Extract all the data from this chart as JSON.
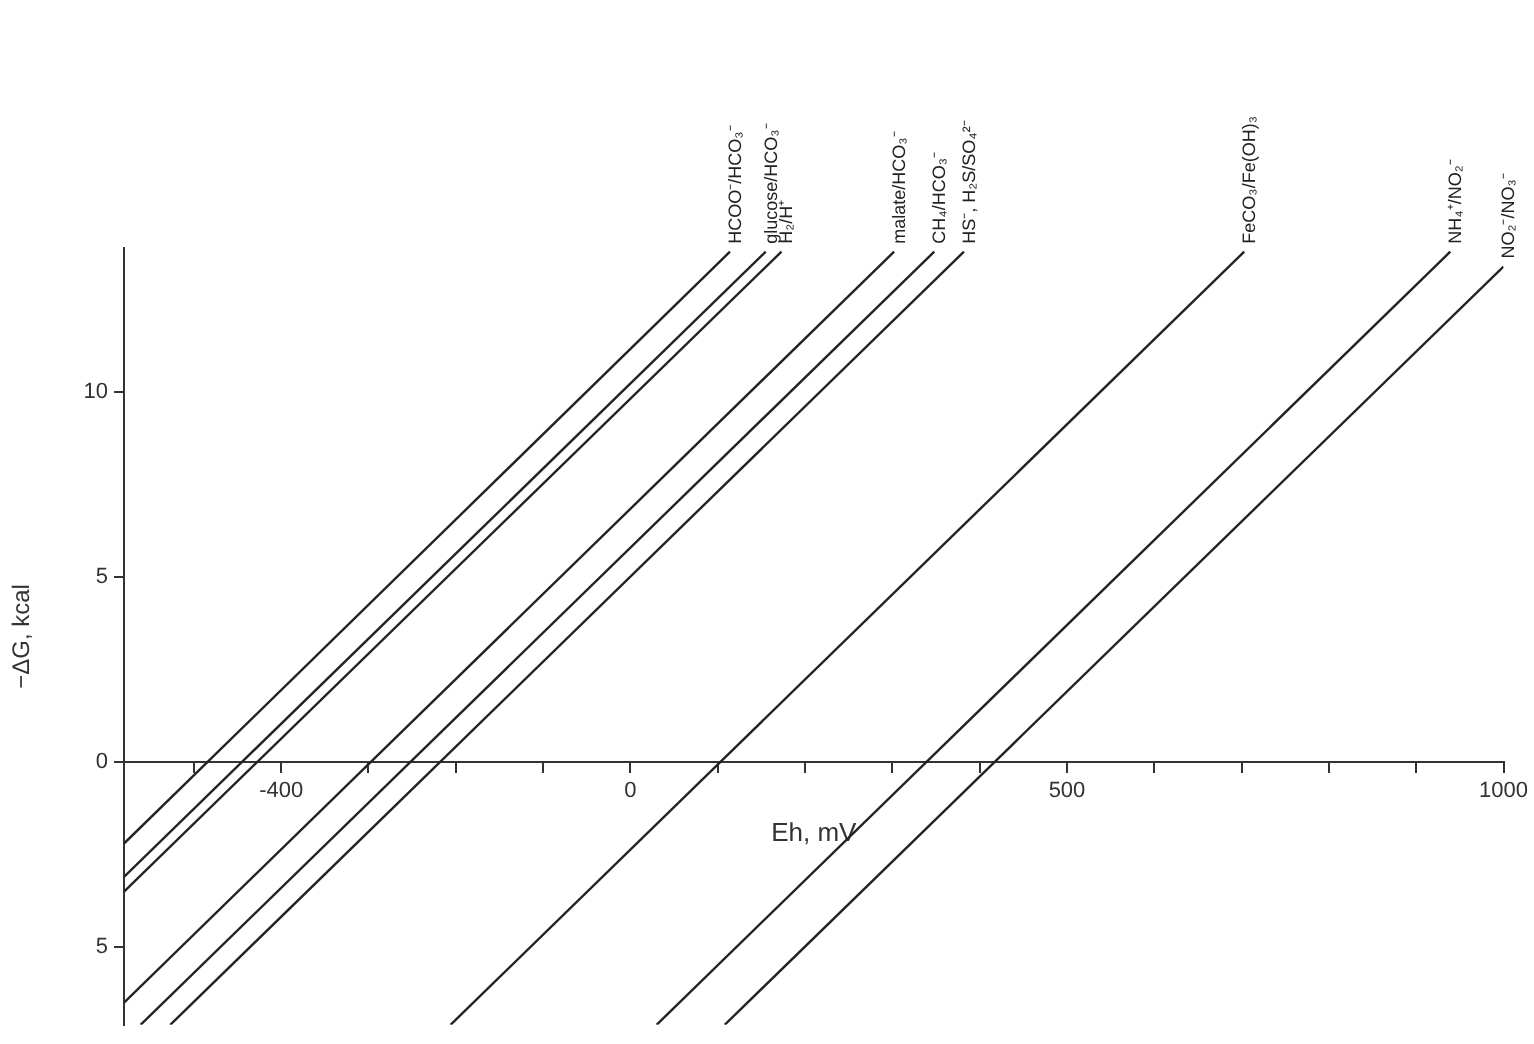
{
  "chart_data": {
    "type": "line",
    "xlabel": "Eh, mV",
    "ylabel": "−ΔG, kcal",
    "xlim": [
      -580,
      1000
    ],
    "ylim": [
      -7.1,
      13.9
    ],
    "xticks": [
      {
        "value": -500,
        "label": null
      },
      -400,
      {
        "value": -300,
        "label": null
      },
      {
        "value": -200,
        "label": null
      },
      {
        "value": -100,
        "label": null
      },
      0,
      {
        "value": 100,
        "label": null
      },
      {
        "value": 200,
        "label": null
      },
      {
        "value": 300,
        "label": null
      },
      {
        "value": 400,
        "label": null
      },
      500,
      {
        "value": 600,
        "label": null
      },
      {
        "value": 700,
        "label": null
      },
      {
        "value": 800,
        "label": null
      },
      {
        "value": 900,
        "label": null
      },
      1000
    ],
    "yticks": [
      {
        "value": -5,
        "label": "5"
      },
      0,
      5,
      10
    ],
    "grid": false,
    "legend": false,
    "marker": "none",
    "line_style": "solid",
    "series": [
      {
        "name": "HCOO⁻/HCO₃⁻",
        "color": "#222222",
        "x": [
          -580,
          114
        ],
        "values": [
          -2.2,
          13.8
        ]
      },
      {
        "name": "glucose/HCO₃⁻",
        "color": "#222222",
        "x": [
          -580,
          155
        ],
        "values": [
          -3.1,
          13.8
        ]
      },
      {
        "name": "H₂/H⁺",
        "color": "#222222",
        "x": [
          -580,
          173
        ],
        "values": [
          -3.5,
          13.8
        ]
      },
      {
        "name": "malate/HCO₃⁻",
        "color": "#222222",
        "x": [
          -580,
          302
        ],
        "values": [
          -6.5,
          13.8
        ]
      },
      {
        "name": "CH₄/HCO₃⁻",
        "color": "#222222",
        "x": [
          -561,
          348
        ],
        "values": [
          -7.1,
          13.8
        ]
      },
      {
        "name": "HS⁻, H₂S/SO₄²⁻",
        "color": "#222222",
        "x": [
          -527,
          382
        ],
        "values": [
          -7.1,
          13.8
        ]
      },
      {
        "name": "FeCO₃/Fe(OH)₃",
        "color": "#222222",
        "x": [
          -206,
          703
        ],
        "values": [
          -7.1,
          13.8
        ]
      },
      {
        "name": "NH₄⁺/NO₂⁻",
        "color": "#222222",
        "x": [
          30,
          939
        ],
        "values": [
          -7.1,
          13.8
        ]
      },
      {
        "name": "NO₂⁻/NO₃⁻",
        "color": "#222222",
        "x": [
          108,
          1000
        ],
        "values": [
          -7.1,
          13.4
        ]
      }
    ]
  }
}
